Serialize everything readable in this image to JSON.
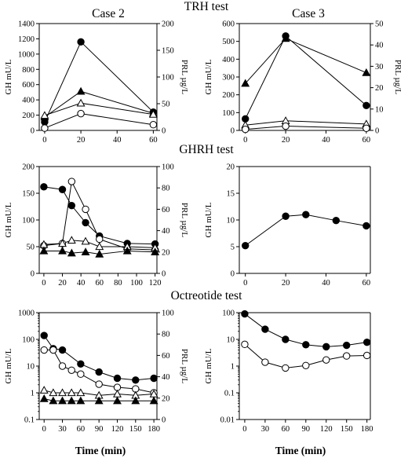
{
  "headers": {
    "case_left": "Case 2",
    "case_right": "Case 3",
    "trh": "TRH test",
    "ghrh": "GHRH test",
    "oct": "Octreotide test"
  },
  "x_title": "Time (min)",
  "chart_data": [
    {
      "id": "trh_case2",
      "type": "line",
      "xticks": [
        0,
        20,
        40,
        60
      ],
      "xlim": [
        -3,
        62
      ],
      "ylim": [
        0,
        1400
      ],
      "yticks": [
        0,
        200,
        400,
        600,
        800,
        1000,
        1200,
        1400
      ],
      "ylabel": "GH mU/L",
      "y2lim": [
        0,
        200
      ],
      "y2ticks": [
        0,
        50,
        100,
        150,
        200
      ],
      "y2label": "PRL µg/L",
      "series": [
        {
          "axis": "left",
          "marker": "circle-filled",
          "x": [
            0,
            20,
            60
          ],
          "y": [
            110,
            1160,
            240
          ]
        },
        {
          "axis": "left",
          "marker": "circle-open",
          "x": [
            0,
            20,
            60
          ],
          "y": [
            30,
            220,
            75
          ]
        },
        {
          "axis": "right",
          "marker": "triangle-filled",
          "x": [
            0,
            20,
            60
          ],
          "y": [
            25,
            73,
            32
          ]
        },
        {
          "axis": "right",
          "marker": "triangle-open",
          "x": [
            0,
            20,
            60
          ],
          "y": [
            28,
            51,
            30
          ]
        }
      ]
    },
    {
      "id": "trh_case3",
      "type": "line",
      "xticks": [
        0,
        20,
        40,
        60
      ],
      "xlim": [
        -3,
        62
      ],
      "ylim": [
        0,
        600
      ],
      "yticks": [
        0,
        100,
        200,
        300,
        400,
        500,
        600
      ],
      "ylabel": "GH mU/L",
      "y2lim": [
        0,
        50
      ],
      "y2ticks": [
        0,
        10,
        20,
        30,
        40,
        50
      ],
      "y2label": "PRL µg/L",
      "series": [
        {
          "axis": "left",
          "marker": "circle-filled",
          "x": [
            0,
            20,
            60
          ],
          "y": [
            65,
            530,
            140
          ]
        },
        {
          "axis": "right",
          "marker": "triangle-filled",
          "x": [
            0,
            20,
            60
          ],
          "y": [
            22,
            43,
            27
          ]
        },
        {
          "axis": "right",
          "marker": "triangle-open",
          "x": [
            0,
            20,
            60
          ],
          "y": [
            2.5,
            4.5,
            3
          ]
        },
        {
          "axis": "right",
          "marker": "circle-open",
          "x": [
            0,
            20,
            60
          ],
          "y": [
            0.5,
            2,
            1
          ]
        }
      ]
    },
    {
      "id": "ghrh_case2",
      "type": "line",
      "xticks": [
        0,
        20,
        40,
        60,
        80,
        100,
        120
      ],
      "xlim": [
        -5,
        122
      ],
      "ylim": [
        0,
        200
      ],
      "yticks": [
        0,
        50,
        100,
        150,
        200
      ],
      "ylabel": "GH mU/L",
      "y2lim": [
        0,
        100
      ],
      "y2ticks": [
        0,
        20,
        40,
        60,
        80,
        100
      ],
      "y2label": "PRL µg/L",
      "series": [
        {
          "axis": "left",
          "marker": "circle-filled",
          "x": [
            0,
            20,
            30,
            45,
            60,
            90,
            120
          ],
          "y": [
            162,
            157,
            127,
            95,
            70,
            56,
            55
          ]
        },
        {
          "axis": "right",
          "marker": "circle-open",
          "x": [
            0,
            20,
            30,
            45,
            60,
            90,
            120
          ],
          "y": [
            26,
            28,
            86,
            60,
            32,
            23,
            22
          ]
        },
        {
          "axis": "right",
          "marker": "triangle-open",
          "x": [
            0,
            20,
            30,
            45,
            60,
            90,
            120
          ],
          "y": [
            27,
            28,
            31,
            30,
            25,
            25,
            24
          ]
        },
        {
          "axis": "right",
          "marker": "triangle-filled",
          "x": [
            0,
            20,
            30,
            45,
            60,
            90,
            120
          ],
          "y": [
            21,
            21,
            19,
            20,
            18,
            21,
            20
          ]
        }
      ]
    },
    {
      "id": "ghrh_case3",
      "type": "line",
      "xticks": [
        0,
        20,
        40,
        60
      ],
      "xlim": [
        -3,
        62
      ],
      "ylim": [
        0,
        20
      ],
      "yticks": [
        0,
        5,
        10,
        15,
        20
      ],
      "ylabel": "GH mU/L",
      "series": [
        {
          "axis": "left",
          "marker": "circle-filled",
          "x": [
            0,
            20,
            30,
            45,
            60
          ],
          "y": [
            5.2,
            10.7,
            11.0,
            9.9,
            8.9
          ]
        }
      ]
    },
    {
      "id": "oct_case2",
      "type": "line",
      "yscale": "log",
      "xticks": [
        0,
        30,
        60,
        90,
        120,
        150,
        180
      ],
      "xlim": [
        -8,
        185
      ],
      "ylim": [
        0.1,
        1000
      ],
      "yticks": [
        0.1,
        1,
        10,
        100,
        1000
      ],
      "yticklabels": [
        "0.1",
        "1",
        "10",
        "100",
        "1000"
      ],
      "ylabel": "GH mU/L",
      "y2lim": [
        0,
        100
      ],
      "y2ticks": [
        0,
        20,
        40,
        60,
        80,
        100
      ],
      "y2label": "PRL µg/L",
      "series": [
        {
          "axis": "left",
          "marker": "circle-filled",
          "x": [
            0,
            15,
            30,
            60,
            90,
            120,
            150,
            180
          ],
          "y": [
            140,
            45,
            40,
            12,
            6,
            3.5,
            3,
            3.5
          ]
        },
        {
          "axis": "left",
          "marker": "circle-open",
          "x": [
            0,
            15,
            30,
            45,
            60,
            90,
            120,
            150,
            180
          ],
          "y": [
            40,
            40,
            10,
            7,
            5,
            2.1,
            1.6,
            1.4,
            1.0
          ]
        },
        {
          "axis": "left",
          "marker": "triangle-open",
          "x": [
            0,
            15,
            30,
            45,
            60,
            90,
            120,
            150,
            180
          ],
          "y": [
            1.25,
            1.0,
            1.0,
            1.0,
            1.0,
            0.8,
            0.9,
            0.8,
            0.9
          ]
        },
        {
          "axis": "left",
          "marker": "triangle-filled",
          "x": [
            0,
            15,
            30,
            45,
            60,
            90,
            120,
            150,
            180
          ],
          "y": [
            0.6,
            0.5,
            0.5,
            0.5,
            0.5,
            0.5,
            0.5,
            0.5,
            0.5
          ]
        }
      ]
    },
    {
      "id": "oct_case3",
      "type": "line",
      "yscale": "log",
      "xticks": [
        0,
        30,
        60,
        90,
        120,
        150,
        180
      ],
      "xlim": [
        -8,
        185
      ],
      "ylim": [
        0.01,
        100
      ],
      "yticks": [
        0.01,
        0.1,
        1,
        10,
        100
      ],
      "yticklabels": [
        "0.01",
        "0.1",
        "1",
        "10",
        "100"
      ],
      "ylabel": "GH mU/L",
      "series": [
        {
          "axis": "left",
          "marker": "circle-filled",
          "x": [
            0,
            30,
            60,
            90,
            120,
            150,
            180
          ],
          "y": [
            90,
            24,
            10,
            6.3,
            5.3,
            6.0,
            7.8
          ]
        },
        {
          "axis": "left",
          "marker": "circle-open",
          "x": [
            0,
            30,
            60,
            90,
            120,
            150,
            180
          ],
          "y": [
            6.5,
            1.4,
            0.85,
            1.05,
            1.7,
            2.4,
            2.5
          ]
        }
      ]
    }
  ]
}
